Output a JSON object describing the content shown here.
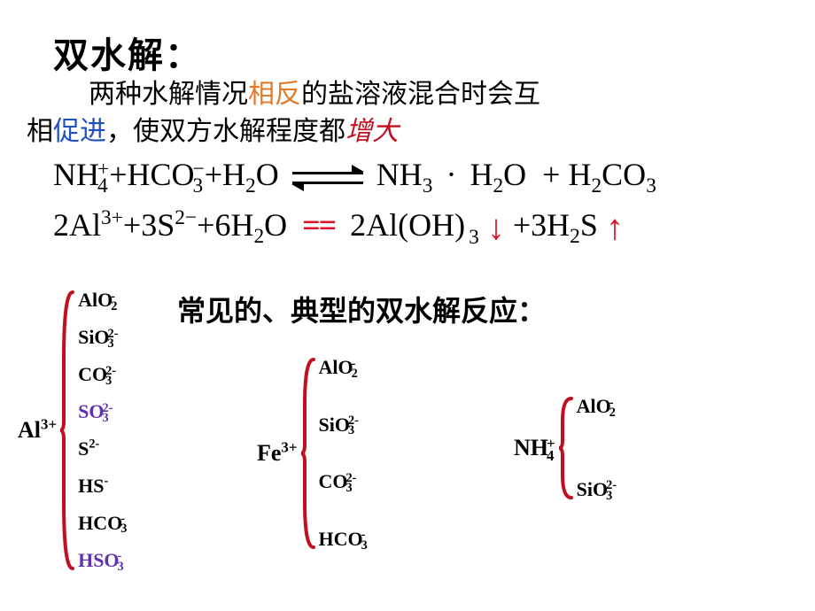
{
  "title": "双水解：",
  "intro": {
    "line1_a": "两种水解情况",
    "line1_b": "相反",
    "line1_c": "的盐溶液混合时会互",
    "line2_a": "相",
    "line2_b": "促进",
    "line2_c": "，使双方水解程度都",
    "line2_d": "增大"
  },
  "eq1": {
    "lhs1": "NH",
    "lhs1_sub": "4",
    "lhs1_sup": "+",
    "plus1": "+",
    "lhs2": "HCO",
    "lhs2_sub": "3",
    "lhs2_sup": "−",
    "plus2": "+",
    "lhs3": "H",
    "lhs3_sub": "2",
    "lhs3b": "O",
    "rhs1": "NH",
    "rhs1_sub": "3",
    "dot": "·",
    "rhs2": "H",
    "rhs2_sub": "2",
    "rhs2b": "O",
    "plus3": "+",
    "rhs3": "H",
    "rhs3_sub": "2",
    "rhs3b": "CO",
    "rhs3_sub2": "3"
  },
  "eq2": {
    "lhs1": "2Al",
    "lhs1_sup": "3+",
    "plus1": "+",
    "lhs2": "3S",
    "lhs2_sup": "2−",
    "plus2": "+",
    "lhs3": "6H",
    "lhs3_sub": "2",
    "lhs3b": "O",
    "eq": "==",
    "rhs1": "2Al(OH)",
    "rhs1_sub": "3",
    "arrow_down": "↓",
    "plus3": "+",
    "rhs2": "3H",
    "rhs2_sub": "2",
    "rhs2b": "S",
    "arrow_up": "↑"
  },
  "subtitle": "常见的、典型的双水解反应：",
  "groups": {
    "g1": {
      "cation": "Al",
      "cation_sup": "3+",
      "ions": [
        {
          "t": "AlO",
          "sub": "2",
          "sup": "-",
          "color": "#000"
        },
        {
          "t": "SiO",
          "sub": "3",
          "sup": "2-",
          "color": "#000"
        },
        {
          "t": "CO",
          "sub": "3",
          "sup": "2-",
          "color": "#000"
        },
        {
          "t": "SO",
          "sub": "3",
          "sup": "2-",
          "color": "#6030b0"
        },
        {
          "t": "S",
          "sub": "",
          "sup": "2-",
          "color": "#000"
        },
        {
          "t": "HS",
          "sub": "",
          "sup": "-",
          "color": "#000"
        },
        {
          "t": "HCO",
          "sub": "3",
          "sup": "-",
          "color": "#000"
        },
        {
          "t": "HSO",
          "sub": "3",
          "sup": "-",
          "color": "#6030b0"
        }
      ]
    },
    "g2": {
      "cation": "Fe",
      "cation_sup": "3+",
      "ions": [
        {
          "t": "AlO",
          "sub": "2",
          "sup": "-",
          "color": "#000"
        },
        {
          "t": "SiO",
          "sub": "3",
          "sup": "2-",
          "color": "#000"
        },
        {
          "t": "CO",
          "sub": "3",
          "sup": "2-",
          "color": "#000"
        },
        {
          "t": "HCO",
          "sub": "3",
          "sup": "-",
          "color": "#000"
        }
      ]
    },
    "g3": {
      "cation": "NH",
      "cation_sub": "4",
      "cation_sup": "+",
      "ions": [
        {
          "t": "AlO",
          "sub": "2",
          "sup": "-",
          "color": "#000"
        },
        {
          "t": "SiO",
          "sub": "3",
          "sup": "2-",
          "color": "#000"
        }
      ]
    }
  },
  "colors": {
    "orange": "#e07b2c",
    "blue": "#2050c0",
    "red": "#c01020",
    "purple": "#6030b0",
    "bracket": "#c01020"
  }
}
